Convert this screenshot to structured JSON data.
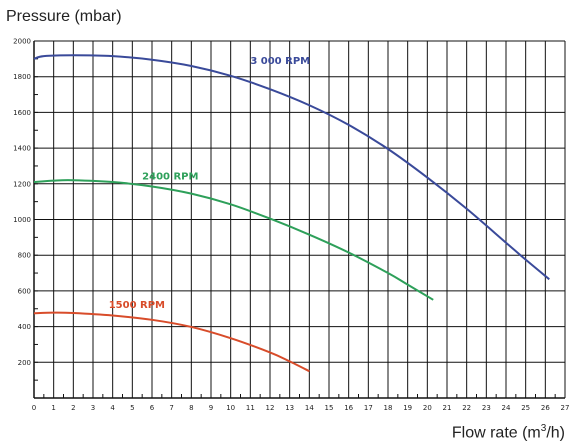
{
  "chart_data": {
    "type": "line",
    "title": "",
    "ylabel": "Pressure (mbar)",
    "xlabel_main": "Flow rate (m",
    "xlabel_sup": "3",
    "xlabel_end": "/h)",
    "xlim": [
      0,
      27
    ],
    "ylim": [
      0,
      2000
    ],
    "x_ticks": [
      0,
      1,
      2,
      3,
      4,
      5,
      6,
      7,
      8,
      9,
      10,
      11,
      12,
      13,
      14,
      15,
      16,
      17,
      18,
      19,
      20,
      21,
      22,
      23,
      24,
      25,
      26,
      27
    ],
    "y_ticks": [
      200,
      400,
      600,
      800,
      1000,
      1200,
      1400,
      1600,
      1800,
      2000
    ],
    "grid": true,
    "series": [
      {
        "name": "3 000 RPM",
        "color": "#3a4a9a",
        "label_at": [
          11,
          1870
        ],
        "points": [
          [
            0,
            1900
          ],
          [
            0.5,
            1915
          ],
          [
            2,
            1920
          ],
          [
            4,
            1915
          ],
          [
            6,
            1895
          ],
          [
            8,
            1860
          ],
          [
            10,
            1805
          ],
          [
            12,
            1730
          ],
          [
            14,
            1640
          ],
          [
            16,
            1530
          ],
          [
            18,
            1395
          ],
          [
            20,
            1235
          ],
          [
            22,
            1060
          ],
          [
            24,
            870
          ],
          [
            25,
            775
          ],
          [
            26.2,
            665
          ]
        ]
      },
      {
        "name": "2400 RPM",
        "color": "#2ea05a",
        "label_at": [
          5.5,
          1225
        ],
        "points": [
          [
            0,
            1210
          ],
          [
            1,
            1218
          ],
          [
            2,
            1220
          ],
          [
            4,
            1210
          ],
          [
            6,
            1185
          ],
          [
            8,
            1145
          ],
          [
            10,
            1085
          ],
          [
            12,
            1005
          ],
          [
            14,
            915
          ],
          [
            16,
            815
          ],
          [
            18,
            700
          ],
          [
            19,
            635
          ],
          [
            20.3,
            550
          ]
        ]
      },
      {
        "name": "1500 RPM",
        "color": "#d84c2a",
        "label_at": [
          3.8,
          505
        ],
        "points": [
          [
            0,
            475
          ],
          [
            1,
            478
          ],
          [
            2,
            476
          ],
          [
            4,
            462
          ],
          [
            6,
            438
          ],
          [
            8,
            398
          ],
          [
            10,
            335
          ],
          [
            12,
            255
          ],
          [
            13,
            205
          ],
          [
            14,
            150
          ]
        ]
      }
    ]
  }
}
